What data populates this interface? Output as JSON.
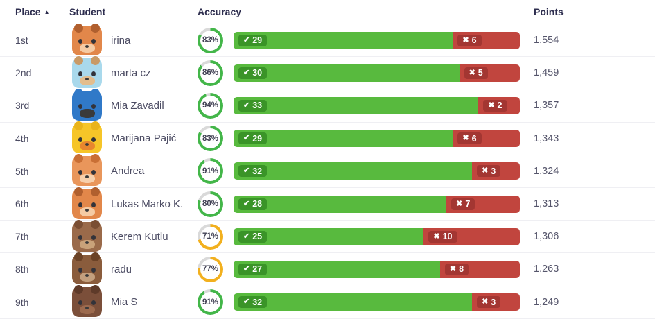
{
  "header": {
    "place": "Place",
    "student": "Student",
    "accuracy": "Accuracy",
    "points": "Points",
    "sort_icon": "▲"
  },
  "icons": {
    "correct": "✔",
    "wrong": "✖"
  },
  "quiz": {
    "total_questions": 35
  },
  "colors": {
    "bar_correct": "#58ba3e",
    "bar_wrong": "#c1453e",
    "badge_correct": "#3a9428",
    "badge_wrong": "#a33632",
    "ring_green": "#43b649",
    "ring_yellow": "#f2b01e",
    "ring_track": "#d9d9d9"
  },
  "rows": [
    {
      "place": "1st",
      "name": "irina",
      "accuracy_pct": 83,
      "accuracy_label": "83%",
      "correct": 29,
      "wrong": 6,
      "points": "1,554",
      "ring": "green",
      "avatar": {
        "animal": "deer",
        "bg": "#e2874a",
        "ear": "#b05f2e",
        "muzzle": "#f5cba4"
      }
    },
    {
      "place": "2nd",
      "name": "marta cz",
      "accuracy_pct": 86,
      "accuracy_label": "86%",
      "correct": 30,
      "wrong": 5,
      "points": "1,459",
      "ring": "green",
      "avatar": {
        "animal": "hamster",
        "bg": "#a9d9ec",
        "ear": "#c99a66",
        "muzzle": "#e3bd8d"
      }
    },
    {
      "place": "3rd",
      "name": "Mia Zavadil",
      "accuracy_pct": 94,
      "accuracy_label": "94%",
      "correct": 33,
      "wrong": 2,
      "points": "1,357",
      "ring": "green",
      "avatar": {
        "animal": "parrot",
        "bg": "#3079c8",
        "ear": "#3079c8",
        "muzzle": "#3a3a3a"
      }
    },
    {
      "place": "4th",
      "name": "Marijana Pajić",
      "accuracy_pct": 83,
      "accuracy_label": "83%",
      "correct": 29,
      "wrong": 6,
      "points": "1,343",
      "ring": "green",
      "avatar": {
        "animal": "duck",
        "bg": "#f6c528",
        "ear": "#e9b31a",
        "muzzle": "#e8862e"
      }
    },
    {
      "place": "5th",
      "name": "Andrea",
      "accuracy_pct": 91,
      "accuracy_label": "91%",
      "correct": 32,
      "wrong": 3,
      "points": "1,324",
      "ring": "green",
      "avatar": {
        "animal": "cat",
        "bg": "#e9965b",
        "ear": "#c96f35",
        "muzzle": "#f7d0ac"
      }
    },
    {
      "place": "6th",
      "name": "Lukas Marko K.",
      "accuracy_pct": 80,
      "accuracy_label": "80%",
      "correct": 28,
      "wrong": 7,
      "points": "1,313",
      "ring": "green",
      "avatar": {
        "animal": "deer",
        "bg": "#e2874a",
        "ear": "#b05f2e",
        "muzzle": "#f5cba4"
      }
    },
    {
      "place": "7th",
      "name": "Kerem Kutlu",
      "accuracy_pct": 71,
      "accuracy_label": "71%",
      "correct": 25,
      "wrong": 10,
      "points": "1,306",
      "ring": "yellow",
      "avatar": {
        "animal": "bear",
        "bg": "#9a6a4a",
        "ear": "#7a4e33",
        "muzzle": "#c9a27a"
      }
    },
    {
      "place": "8th",
      "name": "radu",
      "accuracy_pct": 77,
      "accuracy_label": "77%",
      "correct": 27,
      "wrong": 8,
      "points": "1,263",
      "ring": "yellow",
      "avatar": {
        "animal": "dog",
        "bg": "#8a5c3c",
        "ear": "#6b4226",
        "muzzle": "#c3a07e"
      }
    },
    {
      "place": "9th",
      "name": "Mia S",
      "accuracy_pct": 91,
      "accuracy_label": "91%",
      "correct": 32,
      "wrong": 3,
      "points": "1,249",
      "ring": "green",
      "avatar": {
        "animal": "walrus",
        "bg": "#7b4f3a",
        "ear": "#5e3a29",
        "muzzle": "#9c6a4e"
      }
    }
  ]
}
